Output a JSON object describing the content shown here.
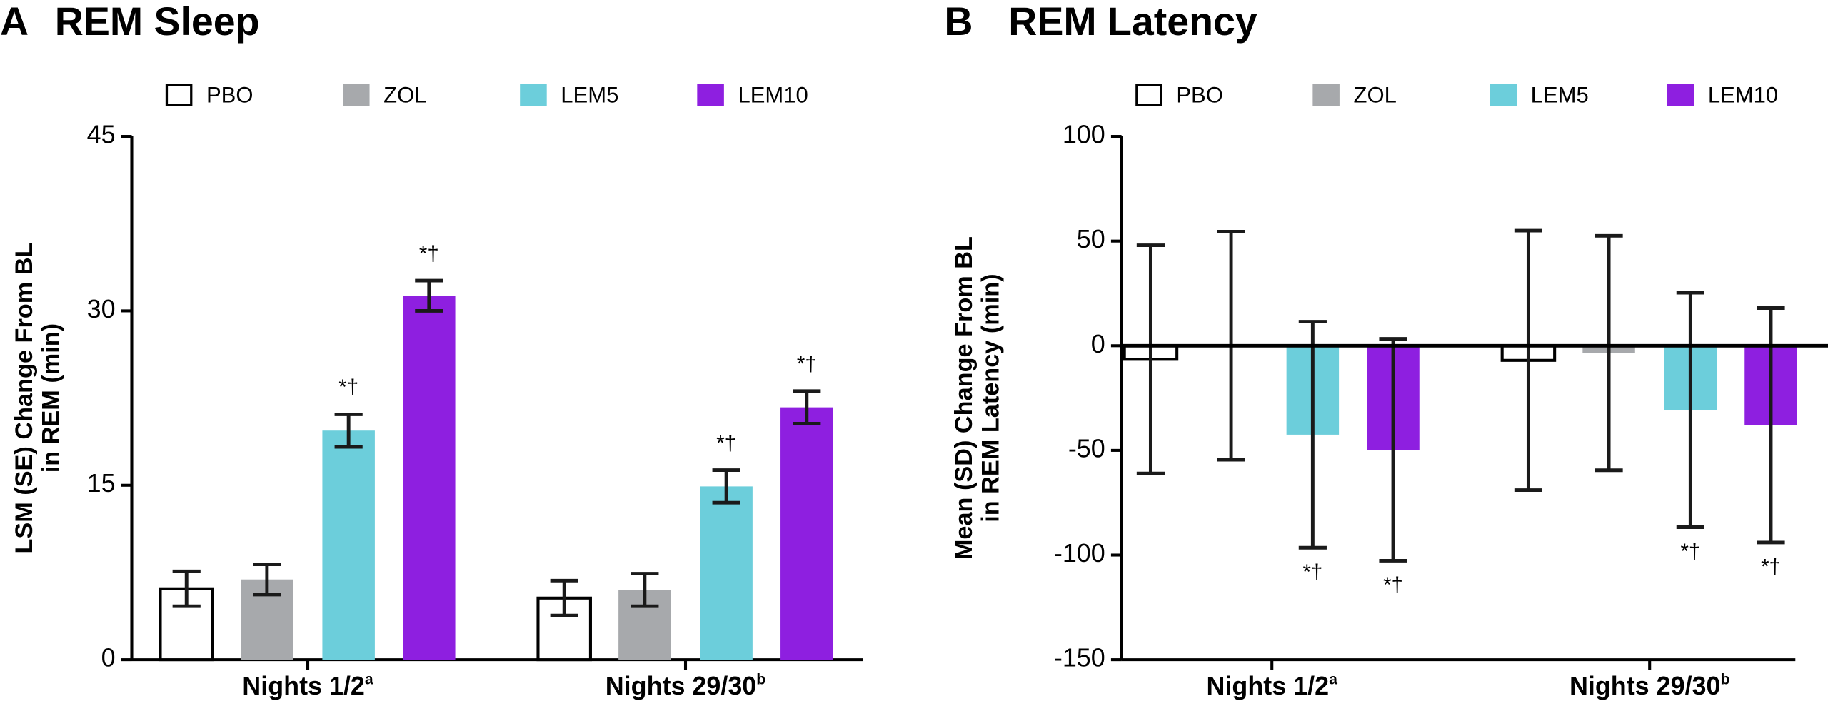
{
  "chart_data": [
    {
      "type": "bar",
      "panel": "A",
      "title": "REM Sleep",
      "ylabel": [
        "LSM (SE) Change From BL",
        "in REM (min)"
      ],
      "categories": [
        "Nights 1/2",
        "Nights 29/30"
      ],
      "category_notes": [
        "a",
        "b"
      ],
      "ylim": [
        0,
        45
      ],
      "yticks": [
        0,
        15,
        30,
        45
      ],
      "series": [
        {
          "name": "PBO",
          "color": "#ffffff",
          "values": [
            6.1,
            5.3
          ],
          "errors": [
            1.5,
            1.5
          ]
        },
        {
          "name": "ZOL",
          "color": "#a7a9ac",
          "values": [
            6.9,
            6.0
          ],
          "errors": [
            1.3,
            1.4
          ]
        },
        {
          "name": "LEM5",
          "color": "#6ccedb",
          "values": [
            19.7,
            14.9
          ],
          "errors": [
            1.4,
            1.4
          ],
          "value_annotations": [
            "*†",
            "*†"
          ]
        },
        {
          "name": "LEM10",
          "color": "#8e1fe0",
          "values": [
            31.3,
            21.7
          ],
          "errors": [
            1.3,
            1.4
          ],
          "value_annotations": [
            "*†",
            "*†"
          ]
        }
      ]
    },
    {
      "type": "bar",
      "panel": "B",
      "title": "REM Latency",
      "ylabel": [
        "Mean (SD) Change From BL",
        "in REM Latency (min)"
      ],
      "categories": [
        "Nights 1/2",
        "Nights 29/30"
      ],
      "category_notes": [
        "a",
        "b"
      ],
      "ylim": [
        -150,
        100
      ],
      "yticks": [
        -150,
        -100,
        -50,
        0,
        50,
        100
      ],
      "series": [
        {
          "name": "PBO",
          "color": "#ffffff",
          "values": [
            -6.5,
            -7
          ],
          "errors": [
            54.5,
            62
          ]
        },
        {
          "name": "ZOL",
          "color": "#a7a9ac",
          "values": [
            0,
            -3.5
          ],
          "errors": [
            54.5,
            56
          ]
        },
        {
          "name": "LEM5",
          "color": "#6ccedb",
          "values": [
            -42.5,
            -30.7
          ],
          "errors": [
            54,
            56
          ],
          "value_annotations": [
            "*†",
            "*†"
          ]
        },
        {
          "name": "LEM10",
          "color": "#8e1fe0",
          "values": [
            -49.7,
            -38
          ],
          "errors": [
            53,
            56
          ],
          "value_annotations": [
            "*†",
            "*†"
          ]
        }
      ]
    }
  ]
}
